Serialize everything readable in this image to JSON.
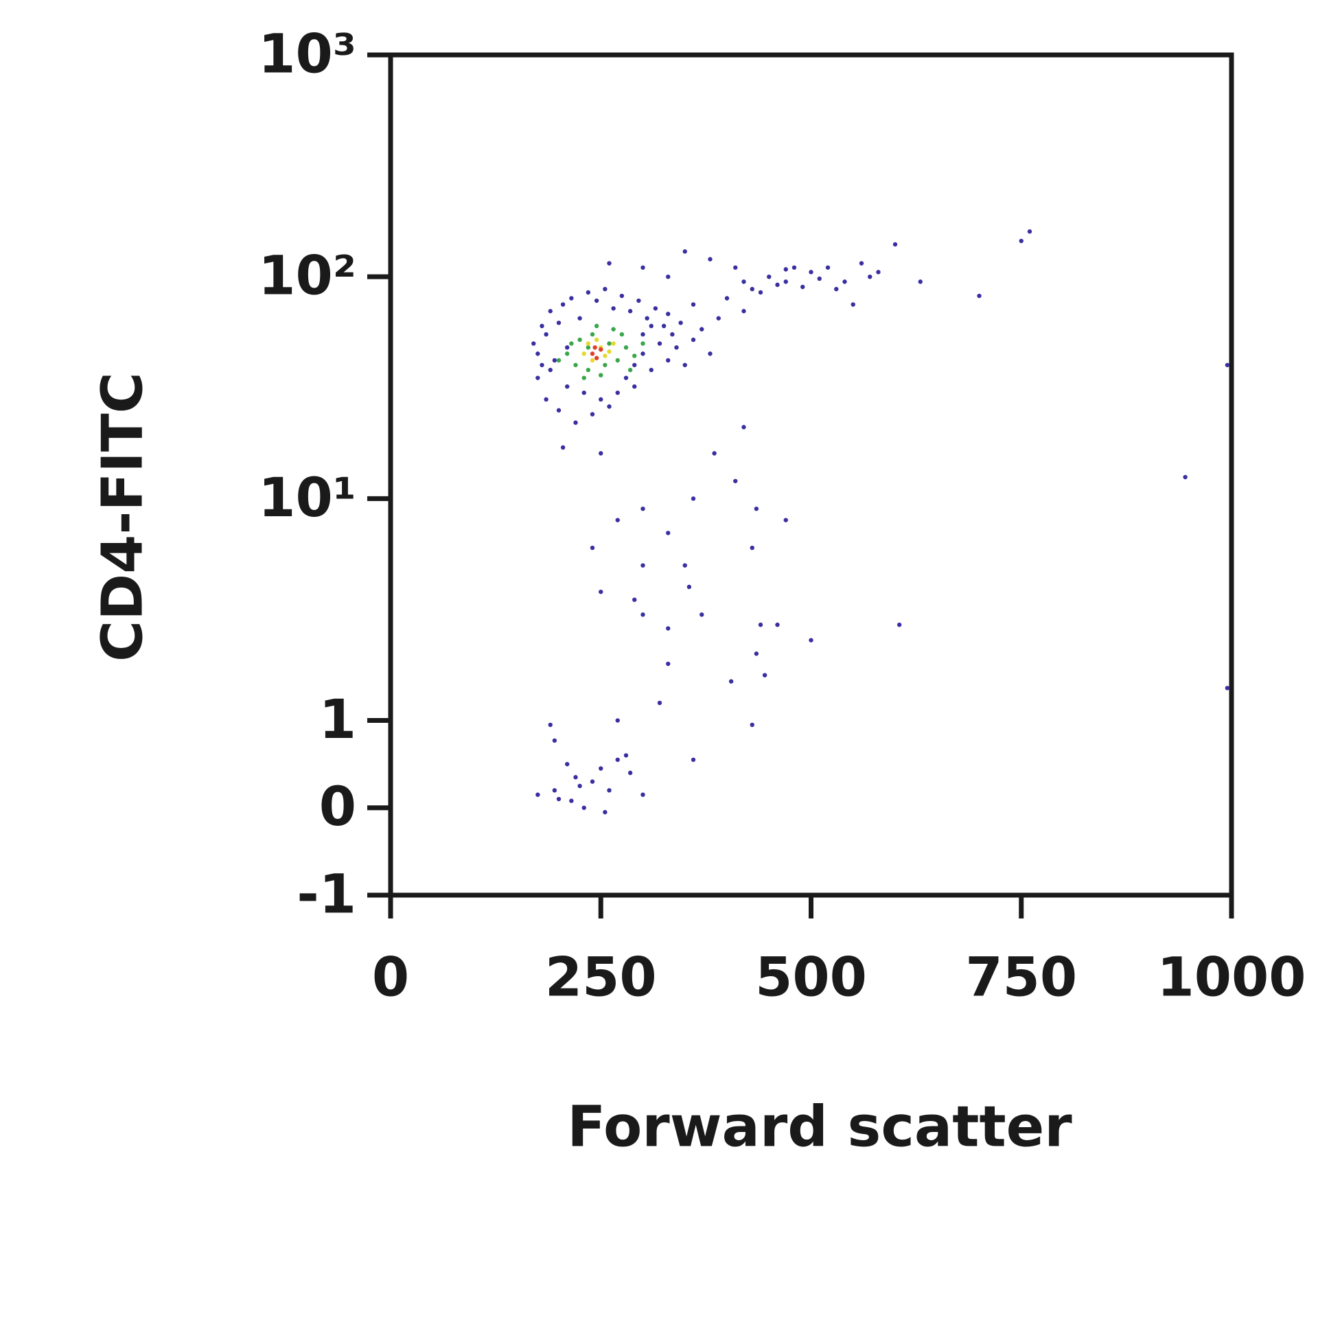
{
  "chart_data": {
    "type": "scatter",
    "x_label": "Forward scatter",
    "y_label": "CD4-FITC",
    "xlim": [
      0,
      1000
    ],
    "xticks": [
      0,
      250,
      500,
      750,
      1000
    ],
    "ylim": [
      -1,
      1000
    ],
    "yscale": "symlog",
    "yticks": [
      -1,
      0,
      1,
      {
        "value": 10,
        "label": "10¹"
      },
      {
        "value": 100,
        "label": "10²"
      },
      {
        "value": 1000,
        "label": "10³"
      }
    ],
    "series": [
      {
        "color": "#3a2fa0",
        "x": [
          170,
          175,
          180,
          185,
          190,
          195,
          200,
          205,
          210,
          215,
          220,
          225,
          230,
          235,
          240,
          245,
          250,
          255,
          260,
          265,
          270,
          275,
          280,
          285,
          290,
          295,
          300,
          305,
          310,
          315,
          320,
          325,
          330,
          335,
          340,
          345,
          350,
          360,
          370,
          380,
          175,
          185,
          190,
          200,
          210,
          300,
          310,
          290,
          180,
          330,
          400,
          420,
          430,
          450,
          470,
          480,
          490,
          500,
          510,
          520,
          540,
          550,
          560,
          570,
          580,
          600,
          630,
          700,
          750,
          760,
          410,
          440,
          460,
          380,
          350,
          330,
          300,
          260,
          420,
          390,
          360,
          470,
          530,
          270,
          300,
          330,
          360,
          410,
          435,
          470,
          240,
          300,
          350,
          430,
          355,
          300,
          290,
          370,
          250,
          330,
          440,
          460,
          500,
          605,
          435,
          330,
          405,
          445,
          320,
          430,
          270,
          190,
          195,
          175,
          195,
          200,
          215,
          225,
          230,
          240,
          250,
          260,
          270,
          280,
          285,
          300,
          210,
          220,
          255,
          360,
          945,
          995,
          995,
          420,
          385,
          205,
          250
        ],
        "values": [
          50,
          35,
          60,
          28,
          70,
          42,
          25,
          75,
          32,
          80,
          22,
          65,
          30,
          85,
          24,
          78,
          28,
          88,
          26,
          72,
          30,
          82,
          35,
          70,
          40,
          78,
          45,
          65,
          38,
          72,
          50,
          60,
          42,
          55,
          48,
          62,
          40,
          52,
          58,
          45,
          45,
          55,
          38,
          62,
          48,
          55,
          60,
          32,
          40,
          68,
          80,
          95,
          88,
          100,
          95,
          110,
          90,
          105,
          98,
          110,
          95,
          75,
          115,
          100,
          105,
          140,
          95,
          82,
          145,
          160,
          110,
          85,
          92,
          120,
          130,
          100,
          110,
          115,
          70,
          65,
          75,
          108,
          88,
          8,
          9,
          7,
          10,
          12,
          9,
          8,
          6,
          5,
          5,
          6,
          4,
          3,
          3.5,
          3,
          3.8,
          2.6,
          2.7,
          2.7,
          2.3,
          2.7,
          2,
          1.8,
          1.5,
          1.6,
          1.2,
          0.95,
          1,
          0.95,
          0.77,
          0.15,
          0.2,
          0.1,
          0.08,
          0.25,
          0,
          0.3,
          0.45,
          0.2,
          0.55,
          0.6,
          0.4,
          0.15,
          0.5,
          0.35,
          -0.05,
          0.55,
          12.5,
          40,
          1.4,
          21,
          16,
          17,
          16
        ]
      },
      {
        "color": "#3aa64a",
        "x": [
          210,
          220,
          225,
          235,
          240,
          250,
          260,
          270,
          280,
          290,
          215,
          230,
          265,
          285,
          245,
          200,
          275,
          255,
          235,
          300
        ],
        "values": [
          45,
          40,
          52,
          38,
          55,
          36,
          50,
          42,
          48,
          44,
          50,
          35,
          58,
          38,
          60,
          42,
          55,
          40,
          48,
          50
        ]
      },
      {
        "color": "#e5d830",
        "x": [
          230,
          240,
          250,
          260,
          245,
          255,
          235,
          265
        ],
        "values": [
          45,
          42,
          48,
          46,
          52,
          44,
          50,
          50
        ]
      },
      {
        "color": "#e0402a",
        "x": [
          240,
          245,
          250,
          243
        ],
        "values": [
          45,
          43,
          47,
          48
        ]
      }
    ]
  }
}
